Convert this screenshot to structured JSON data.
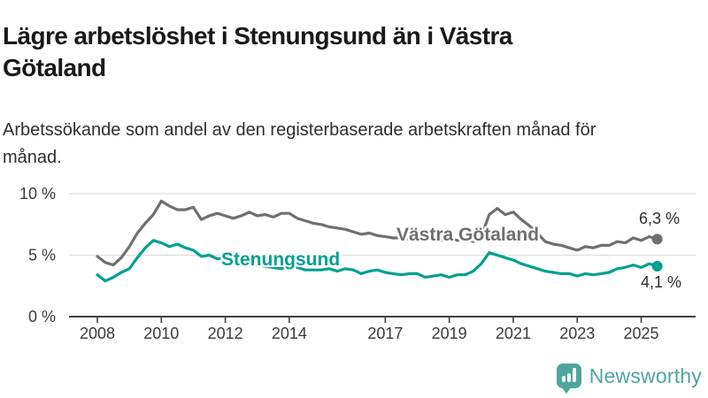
{
  "header": {
    "title": "Lägre arbetslöshet i Stenungsund än i Västra Götaland",
    "subtitle": "Arbetssökande som andel av den registerbaserade arbetskraften månad för månad."
  },
  "chart_data": {
    "type": "line",
    "x_unit": "year (quarterly samples of monthly data)",
    "x_start_year": 2008,
    "points_per_year": 4,
    "x_tick_labels": [
      "2008",
      "2010",
      "2012",
      "2014",
      "2017",
      "2019",
      "2021",
      "2023",
      "2025"
    ],
    "x_tick_years": [
      2008,
      2010,
      2012,
      2014,
      2017,
      2019,
      2021,
      2023,
      2025
    ],
    "y_ticks": [
      {
        "label": "10 %",
        "value": 10
      },
      {
        "label": "5 %",
        "value": 5
      },
      {
        "label": "0 %",
        "value": 0
      }
    ],
    "ylim": [
      0,
      10.8
    ],
    "xlim": [
      2008,
      2025.75
    ],
    "grid": "horizontal",
    "legend": "inline-labels",
    "unit": "%",
    "series": [
      {
        "name": "Västra Götaland",
        "slug": "vastra-gotaland",
        "color": "#6f6f6f",
        "end_label": "6,3 %",
        "end_value": 6.3,
        "values": [
          4.9,
          4.4,
          4.2,
          4.8,
          5.7,
          6.8,
          7.6,
          8.3,
          9.4,
          9.0,
          8.7,
          8.7,
          8.9,
          7.9,
          8.2,
          8.4,
          8.2,
          8.0,
          8.2,
          8.5,
          8.2,
          8.3,
          8.1,
          8.4,
          8.4,
          8.0,
          7.8,
          7.6,
          7.5,
          7.3,
          7.2,
          7.1,
          6.9,
          6.7,
          6.8,
          6.6,
          6.5,
          6.4,
          6.4,
          6.3,
          6.5,
          6.3,
          6.4,
          6.2,
          6.4,
          6.2,
          6.3,
          6.1,
          6.5,
          8.3,
          8.8,
          8.3,
          8.5,
          7.9,
          7.4,
          6.8,
          6.1,
          5.9,
          5.8,
          5.6,
          5.4,
          5.7,
          5.6,
          5.8,
          5.8,
          6.1,
          6.0,
          6.4,
          6.2,
          6.5,
          6.3
        ]
      },
      {
        "name": "Stenungsund",
        "slug": "stenungsund",
        "color": "#00a08f",
        "end_label": "4,1 %",
        "end_value": 4.1,
        "values": [
          3.4,
          2.9,
          3.2,
          3.6,
          3.9,
          4.8,
          5.6,
          6.2,
          6.0,
          5.7,
          5.9,
          5.6,
          5.4,
          4.9,
          5.0,
          4.7,
          4.8,
          4.6,
          4.5,
          4.3,
          4.2,
          4.1,
          4.0,
          3.9,
          4.1,
          4.0,
          3.8,
          3.8,
          3.8,
          3.9,
          3.7,
          3.9,
          3.8,
          3.5,
          3.7,
          3.8,
          3.6,
          3.5,
          3.4,
          3.5,
          3.5,
          3.2,
          3.3,
          3.4,
          3.2,
          3.4,
          3.4,
          3.7,
          4.3,
          5.2,
          5.0,
          4.8,
          4.6,
          4.3,
          4.1,
          3.9,
          3.7,
          3.6,
          3.5,
          3.5,
          3.3,
          3.5,
          3.4,
          3.5,
          3.6,
          3.9,
          4.0,
          4.2,
          4.0,
          4.3,
          4.1
        ]
      }
    ]
  },
  "branding": {
    "name": "Newsworthy",
    "color": "#4da69b",
    "icon": "bar-chart-speech-bubble-icon"
  }
}
